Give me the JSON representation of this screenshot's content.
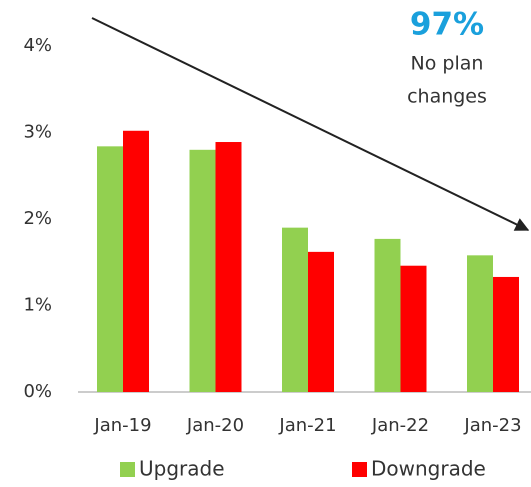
{
  "chart_data": {
    "type": "bar",
    "categories": [
      "Jan-19",
      "Jan-20",
      "Jan-21",
      "Jan-22",
      "Jan-23"
    ],
    "series": [
      {
        "name": "Upgrade",
        "color": "#92d050",
        "values": [
          2.84,
          2.8,
          1.9,
          1.77,
          1.58
        ]
      },
      {
        "name": "Downgrade",
        "color": "#ff0000",
        "values": [
          3.02,
          2.89,
          1.62,
          1.46,
          1.33
        ]
      }
    ],
    "ylim": [
      0,
      4
    ],
    "yticks": [
      {
        "value": 0,
        "label": "0%"
      },
      {
        "value": 1,
        "label": "1%"
      },
      {
        "value": 2,
        "label": "2%"
      },
      {
        "value": 3,
        "label": "3%"
      },
      {
        "value": 4,
        "label": "4%"
      }
    ],
    "annotation": {
      "highlight": "97%",
      "lines": [
        "No plan",
        "changes"
      ]
    }
  }
}
